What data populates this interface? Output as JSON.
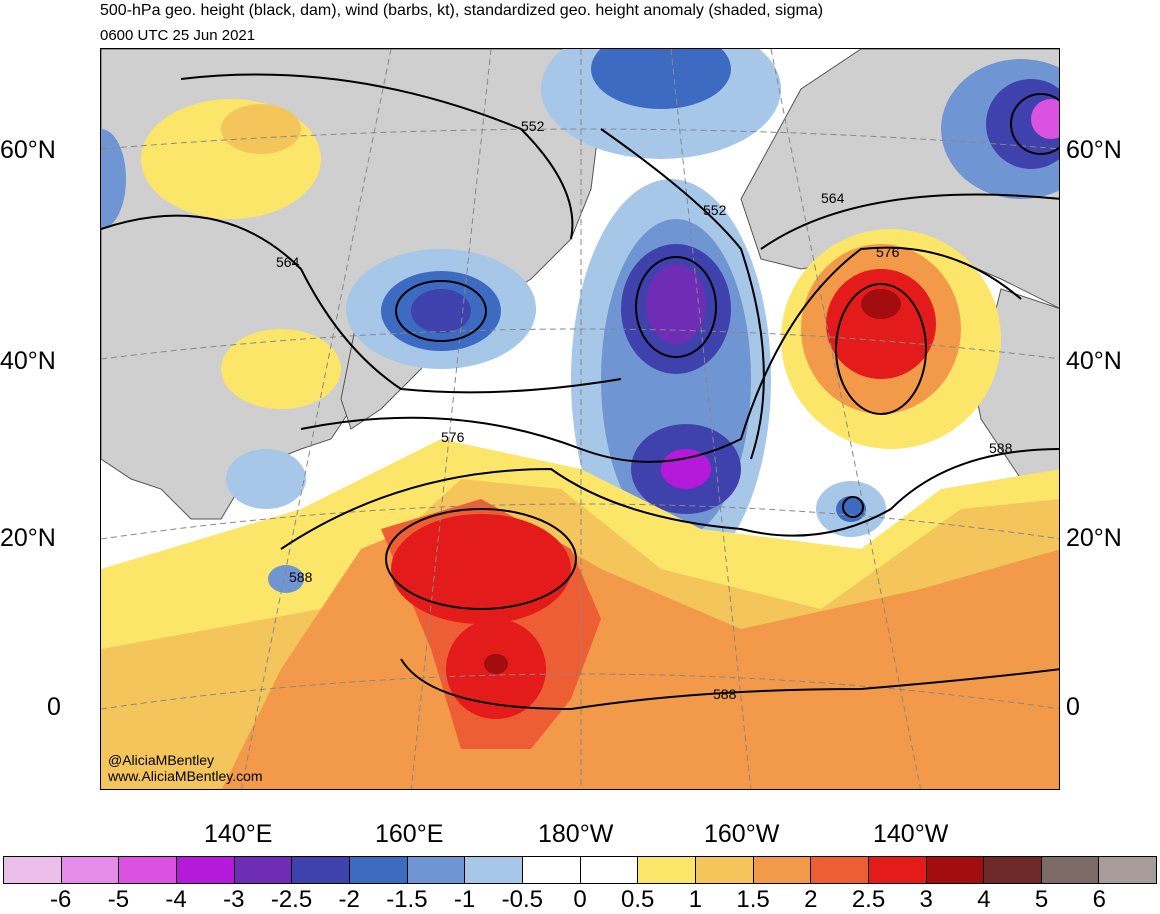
{
  "title": {
    "line1": "500-hPa geo. height (black, dam), wind (barbs, kt), standardized geo. height anomaly (shaded, sigma)",
    "line2": "0600 UTC 25 Jun 2021"
  },
  "lat_labels": [
    "60°N",
    "40°N",
    "20°N",
    "0"
  ],
  "lon_labels": [
    "140°E",
    "160°E",
    "180°W",
    "160°W",
    "140°W"
  ],
  "contour_labels": [
    "552",
    "552",
    "564",
    "564",
    "576",
    "576",
    "588",
    "588",
    "588"
  ],
  "credits": [
    "@AliciaMBentley",
    "www.AliciaMBentley.com"
  ],
  "colorbar": {
    "labels": [
      "-6",
      "-5",
      "-4",
      "-3",
      "-2.5",
      "-2",
      "-1.5",
      "-1",
      "-0.5",
      "0",
      "0.5",
      "1",
      "1.5",
      "2",
      "2.5",
      "3",
      "4",
      "5",
      "6"
    ],
    "colors": [
      "#ebbfea",
      "#e58be8",
      "#db52e3",
      "#b519d9",
      "#6f2cb4",
      "#3f42ad",
      "#3d6bc2",
      "#6f96d3",
      "#a6c7e8",
      "#ffffff",
      "#ffffff",
      "#fbe66a",
      "#f4c55b",
      "#f29a4a",
      "#ee5e35",
      "#e31b1b",
      "#a30d10",
      "#6e2a29",
      "#7c6a66",
      "#a89c9a"
    ]
  },
  "colors": {
    "land": "#cfcfcf",
    "coast": "#555555",
    "contour": "#000000",
    "grid": "#888888"
  }
}
